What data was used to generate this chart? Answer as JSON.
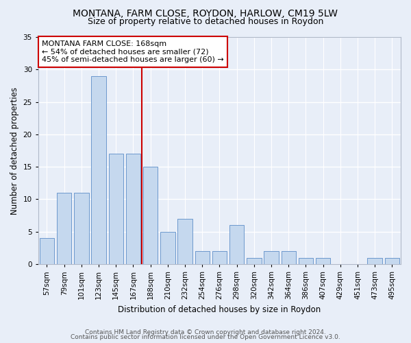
{
  "title": "MONTANA, FARM CLOSE, ROYDON, HARLOW, CM19 5LW",
  "subtitle": "Size of property relative to detached houses in Roydon",
  "xlabel": "Distribution of detached houses by size in Roydon",
  "ylabel": "Number of detached properties",
  "categories": [
    "57sqm",
    "79sqm",
    "101sqm",
    "123sqm",
    "145sqm",
    "167sqm",
    "188sqm",
    "210sqm",
    "232sqm",
    "254sqm",
    "276sqm",
    "298sqm",
    "320sqm",
    "342sqm",
    "364sqm",
    "386sqm",
    "407sqm",
    "429sqm",
    "451sqm",
    "473sqm",
    "495sqm"
  ],
  "values": [
    4,
    11,
    11,
    29,
    17,
    17,
    15,
    5,
    7,
    2,
    2,
    6,
    1,
    2,
    2,
    1,
    1,
    0,
    0,
    1,
    1
  ],
  "bar_color": "#c5d8ee",
  "bar_edge_color": "#5b8dc8",
  "bar_linewidth": 0.6,
  "vline_x_index": 5.5,
  "vline_color": "#cc0000",
  "annotation_line1": "MONTANA FARM CLOSE: 168sqm",
  "annotation_line2": "← 54% of detached houses are smaller (72)",
  "annotation_line3": "45% of semi-detached houses are larger (60) →",
  "annotation_box_color": "#ffffff",
  "annotation_box_edge": "#cc0000",
  "ylim": [
    0,
    35
  ],
  "yticks": [
    0,
    5,
    10,
    15,
    20,
    25,
    30,
    35
  ],
  "background_color": "#e8eef8",
  "grid_color": "#ffffff",
  "footer_line1": "Contains HM Land Registry data © Crown copyright and database right 2024.",
  "footer_line2": "Contains public sector information licensed under the Open Government Licence v3.0.",
  "title_fontsize": 10,
  "subtitle_fontsize": 9,
  "xlabel_fontsize": 8.5,
  "ylabel_fontsize": 8.5,
  "tick_fontsize": 7.5,
  "annotation_fontsize": 8,
  "footer_fontsize": 6.5
}
